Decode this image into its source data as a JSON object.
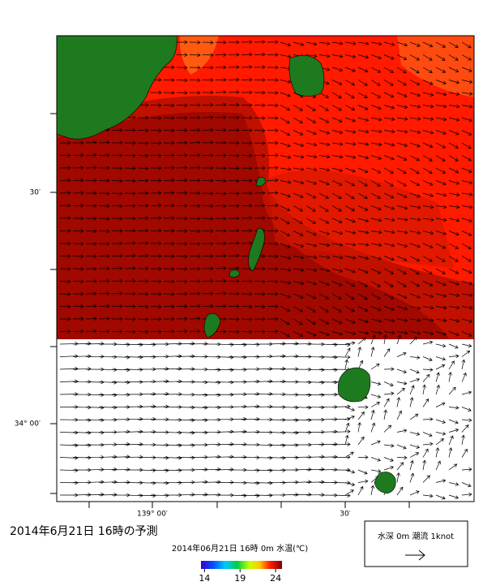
{
  "map": {
    "axes": {
      "left_labels": [
        "30′",
        "34° 00′"
      ],
      "bottom_labels": [
        "139° 00′",
        "30′"
      ]
    },
    "title": "2014年6月21日 16時の予測",
    "colorbar": {
      "caption": "2014年06月21日 16時 0m 水温(℃)",
      "lim": [
        13.5,
        24.9
      ],
      "ticks": [
        14,
        19,
        24
      ]
    },
    "legend": {
      "text": "水深 0m 潮流 1knot"
    }
  }
}
